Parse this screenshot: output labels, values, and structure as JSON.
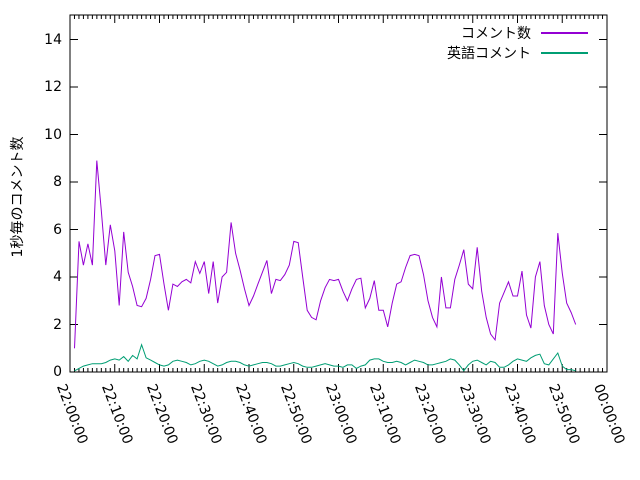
{
  "chart_data": {
    "type": "line",
    "title": "",
    "xlabel": "",
    "ylabel": "1秒毎のコメント数",
    "grid": false,
    "legend_position": "top-right-inside",
    "background_color": "#ffffff",
    "border_color": "#000000",
    "x_axis": {
      "tick_labels": [
        "22:00:00",
        "22:10:00",
        "22:20:00",
        "22:30:00",
        "22:40:00",
        "22:50:00",
        "23:00:00",
        "23:10:00",
        "23:20:00",
        "23:30:00",
        "23:40:00",
        "23:50:00",
        "00:00:00"
      ],
      "major_tick_minutes": 10,
      "minor_tick_minutes": 1,
      "range_minutes": [
        0,
        120
      ]
    },
    "y_axis": {
      "min": 0,
      "max": 15,
      "tick_step": 2,
      "tick_labels": [
        "0",
        "2",
        "4",
        "6",
        "8",
        "10",
        "12",
        "14"
      ]
    },
    "series": [
      {
        "name": "コメント数",
        "color": "#9400d3",
        "start_minute": 1,
        "interval_minutes": 1,
        "values": [
          1.0,
          5.5,
          4.5,
          5.4,
          4.5,
          8.9,
          6.8,
          4.5,
          6.2,
          5.1,
          2.8,
          5.9,
          4.2,
          3.6,
          2.8,
          2.75,
          3.1,
          3.9,
          4.9,
          4.95,
          3.7,
          2.6,
          3.7,
          3.6,
          3.8,
          3.9,
          3.75,
          4.65,
          4.15,
          4.65,
          3.3,
          4.65,
          2.9,
          4.0,
          4.2,
          6.3,
          5.0,
          4.3,
          3.5,
          2.8,
          3.2,
          3.7,
          4.2,
          4.7,
          3.3,
          3.9,
          3.85,
          4.1,
          4.5,
          5.5,
          5.45,
          4.0,
          2.6,
          2.3,
          2.2,
          3.0,
          3.55,
          3.9,
          3.85,
          3.9,
          3.4,
          3.0,
          3.5,
          3.9,
          3.95,
          2.7,
          3.1,
          3.85,
          2.6,
          2.6,
          1.9,
          2.9,
          3.7,
          3.8,
          4.4,
          4.9,
          4.95,
          4.9,
          4.1,
          3.0,
          2.3,
          1.9,
          4.0,
          2.7,
          2.7,
          3.9,
          4.5,
          5.15,
          3.7,
          3.5,
          5.25,
          3.4,
          2.3,
          1.6,
          1.35,
          2.9,
          3.35,
          3.8,
          3.2,
          3.2,
          4.25,
          2.4,
          1.85,
          4.0,
          4.65,
          2.8,
          2.0,
          1.6,
          5.85,
          4.15,
          2.9,
          2.5,
          2.0
        ]
      },
      {
        "name": "英語コメント",
        "color": "#009e73",
        "start_minute": 1,
        "interval_minutes": 1,
        "values": [
          0.05,
          0.15,
          0.25,
          0.3,
          0.35,
          0.35,
          0.35,
          0.4,
          0.5,
          0.55,
          0.5,
          0.65,
          0.45,
          0.7,
          0.55,
          1.15,
          0.6,
          0.5,
          0.4,
          0.3,
          0.25,
          0.3,
          0.45,
          0.5,
          0.45,
          0.4,
          0.3,
          0.35,
          0.45,
          0.5,
          0.45,
          0.35,
          0.25,
          0.3,
          0.4,
          0.45,
          0.45,
          0.4,
          0.3,
          0.25,
          0.3,
          0.35,
          0.4,
          0.4,
          0.35,
          0.25,
          0.25,
          0.3,
          0.35,
          0.4,
          0.35,
          0.25,
          0.2,
          0.2,
          0.25,
          0.3,
          0.35,
          0.3,
          0.25,
          0.25,
          0.2,
          0.3,
          0.3,
          0.15,
          0.25,
          0.3,
          0.5,
          0.55,
          0.55,
          0.45,
          0.4,
          0.4,
          0.45,
          0.4,
          0.3,
          0.4,
          0.5,
          0.45,
          0.4,
          0.3,
          0.3,
          0.35,
          0.4,
          0.45,
          0.55,
          0.5,
          0.3,
          0.05,
          0.3,
          0.45,
          0.5,
          0.4,
          0.3,
          0.45,
          0.4,
          0.2,
          0.2,
          0.3,
          0.45,
          0.55,
          0.5,
          0.45,
          0.6,
          0.7,
          0.75,
          0.35,
          0.3,
          0.55,
          0.8,
          0.25,
          0.1,
          0.1,
          0.05
        ]
      }
    ]
  }
}
